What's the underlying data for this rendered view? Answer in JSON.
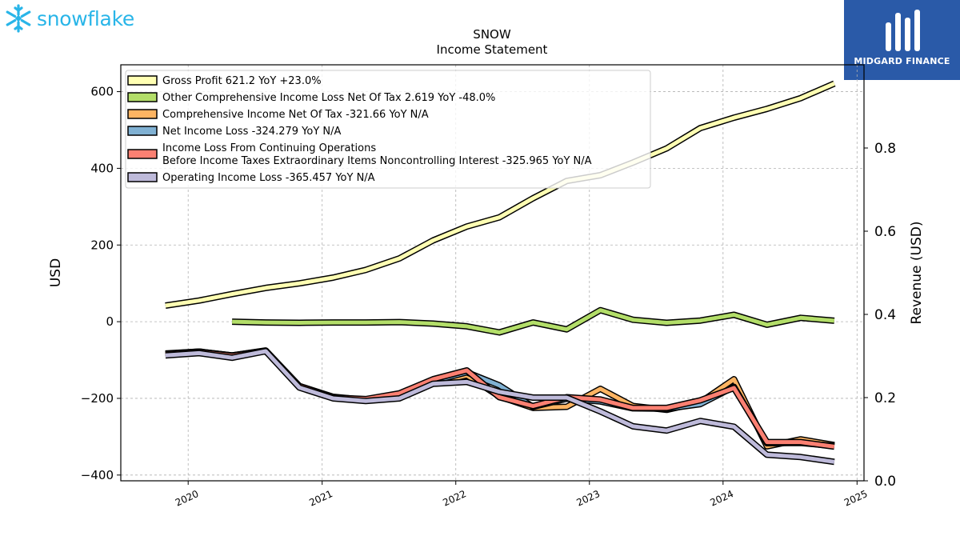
{
  "brand": {
    "left_logo_text": "snowflake",
    "left_logo_icon": "snowflake-icon",
    "right_logo_text": "MIDGARD FINANCE",
    "right_logo_icon": "midgard-monogram-icon",
    "left_color": "#29b5e8",
    "right_bg": "#2a5aa8"
  },
  "chart_data": {
    "type": "line",
    "title": "SNOW",
    "subtitle": "Income Statement",
    "ylabel": "USD",
    "y2label": "Revenue (USD)",
    "ylim": [
      -415,
      670
    ],
    "y2lim": [
      0.0,
      1.0
    ],
    "xlim": [
      "2019-07-01",
      "2025-01-20"
    ],
    "yticks": [
      -400,
      -200,
      0,
      200,
      400,
      600
    ],
    "ytick_labels": [
      "−400",
      "−200",
      "0",
      "200",
      "400",
      "600"
    ],
    "y2ticks": [
      0.0,
      0.2,
      0.4,
      0.6,
      0.8
    ],
    "y2tick_labels": [
      "0.0",
      "0.2",
      "0.4",
      "0.6",
      "0.8"
    ],
    "xticks": [
      "2020-01-01",
      "2021-01-01",
      "2022-01-01",
      "2023-01-01",
      "2024-01-01",
      "2025-01-01"
    ],
    "xtick_labels": [
      "2020",
      "2021",
      "2022",
      "2023",
      "2024",
      "2025"
    ],
    "grid": true,
    "legend_position": "top-left",
    "series": [
      {
        "name": "Gross Profit",
        "legend": "Gross Profit  621.2 YoY +23.0%",
        "color": "#ffffb3",
        "points": [
          [
            "2019-10-31",
            42
          ],
          [
            "2020-01-31",
            55
          ],
          [
            "2020-04-30",
            72
          ],
          [
            "2020-07-31",
            88
          ],
          [
            "2020-10-31",
            100
          ],
          [
            "2021-01-31",
            115
          ],
          [
            "2021-04-30",
            135
          ],
          [
            "2021-07-31",
            165
          ],
          [
            "2021-10-31",
            212
          ],
          [
            "2022-01-31",
            248
          ],
          [
            "2022-04-30",
            272
          ],
          [
            "2022-07-31",
            322
          ],
          [
            "2022-10-31",
            367
          ],
          [
            "2023-01-31",
            382
          ],
          [
            "2023-04-30",
            415
          ],
          [
            "2023-07-31",
            452
          ],
          [
            "2023-10-31",
            505
          ],
          [
            "2024-01-31",
            532
          ],
          [
            "2024-04-30",
            555
          ],
          [
            "2024-07-31",
            583
          ],
          [
            "2024-10-31",
            621.2
          ]
        ]
      },
      {
        "name": "Other Comprehensive Income Loss Net Of Tax",
        "legend": "Other Comprehensive Income Loss Net Of Tax  2.619 YoY -48.0%",
        "color": "#b3de69",
        "points": [
          [
            "2020-04-30",
            0
          ],
          [
            "2020-07-31",
            -2
          ],
          [
            "2020-10-31",
            -3
          ],
          [
            "2021-01-31",
            -2
          ],
          [
            "2021-04-30",
            -2
          ],
          [
            "2021-07-31",
            -1
          ],
          [
            "2021-10-31",
            -5
          ],
          [
            "2022-01-31",
            -12
          ],
          [
            "2022-04-30",
            -28
          ],
          [
            "2022-07-31",
            -2
          ],
          [
            "2022-10-31",
            -20
          ],
          [
            "2023-01-31",
            30
          ],
          [
            "2023-04-30",
            5
          ],
          [
            "2023-07-31",
            -3
          ],
          [
            "2023-10-31",
            3
          ],
          [
            "2024-01-31",
            18
          ],
          [
            "2024-04-30",
            -8
          ],
          [
            "2024-07-31",
            10
          ],
          [
            "2024-10-31",
            2.619
          ]
        ]
      },
      {
        "name": "Comprehensive Income Net Of Tax",
        "legend": "Comprehensive Income Net Of Tax  -321.66 YoY N/A",
        "color": "#fdb462",
        "points": [
          [
            "2019-10-31",
            -83
          ],
          [
            "2020-01-31",
            -78
          ],
          [
            "2020-04-30",
            -88
          ],
          [
            "2020-07-31",
            -75
          ],
          [
            "2020-10-31",
            -168
          ],
          [
            "2021-01-31",
            -196
          ],
          [
            "2021-04-30",
            -204
          ],
          [
            "2021-07-31",
            -189
          ],
          [
            "2021-10-31",
            -160
          ],
          [
            "2022-01-31",
            -140
          ],
          [
            "2022-04-30",
            -195
          ],
          [
            "2022-07-31",
            -225
          ],
          [
            "2022-10-31",
            -222
          ],
          [
            "2023-01-31",
            -175
          ],
          [
            "2023-04-30",
            -220
          ],
          [
            "2023-07-31",
            -230
          ],
          [
            "2023-10-31",
            -210
          ],
          [
            "2024-01-31",
            -150
          ],
          [
            "2024-04-30",
            -325
          ],
          [
            "2024-07-31",
            -307
          ],
          [
            "2024-10-31",
            -321.66
          ]
        ]
      },
      {
        "name": "Net Income Loss",
        "legend": "Net Income Loss  -324.279 YoY N/A",
        "color": "#80b1d3",
        "points": [
          [
            "2019-10-31",
            -84
          ],
          [
            "2020-01-31",
            -78
          ],
          [
            "2020-04-30",
            -88
          ],
          [
            "2020-07-31",
            -76
          ],
          [
            "2020-10-31",
            -169
          ],
          [
            "2021-01-31",
            -199
          ],
          [
            "2021-04-30",
            -203
          ],
          [
            "2021-07-31",
            -190
          ],
          [
            "2021-10-31",
            -155
          ],
          [
            "2022-01-31",
            -132
          ],
          [
            "2022-04-30",
            -166
          ],
          [
            "2022-07-31",
            -222
          ],
          [
            "2022-10-31",
            -201
          ],
          [
            "2023-01-31",
            -208
          ],
          [
            "2023-04-30",
            -226
          ],
          [
            "2023-07-31",
            -227
          ],
          [
            "2023-10-31",
            -215
          ],
          [
            "2024-01-31",
            -170
          ],
          [
            "2024-04-30",
            -317
          ],
          [
            "2024-07-31",
            -316
          ],
          [
            "2024-10-31",
            -324.279
          ]
        ]
      },
      {
        "name": "Income Loss From Continuing Operations Before Income Taxes Extraordinary Items Noncontrolling Interest",
        "legend": "Income Loss From Continuing Operations",
        "legend_line2": "Before Income Taxes Extraordinary Items Noncontrolling Interest  -325.965 YoY N/A",
        "color": "#fb8072",
        "points": [
          [
            "2019-10-31",
            -85
          ],
          [
            "2020-01-31",
            -79
          ],
          [
            "2020-04-30",
            -89
          ],
          [
            "2020-07-31",
            -77
          ],
          [
            "2020-10-31",
            -168
          ],
          [
            "2021-01-31",
            -198
          ],
          [
            "2021-04-30",
            -202
          ],
          [
            "2021-07-31",
            -187
          ],
          [
            "2021-10-31",
            -150
          ],
          [
            "2022-01-31",
            -127
          ],
          [
            "2022-04-30",
            -197
          ],
          [
            "2022-07-31",
            -220
          ],
          [
            "2022-10-31",
            -197
          ],
          [
            "2023-01-31",
            -203
          ],
          [
            "2023-04-30",
            -225
          ],
          [
            "2023-07-31",
            -225
          ],
          [
            "2023-10-31",
            -205
          ],
          [
            "2024-01-31",
            -173
          ],
          [
            "2024-04-30",
            -314
          ],
          [
            "2024-07-31",
            -314
          ],
          [
            "2024-10-31",
            -325.965
          ]
        ]
      },
      {
        "name": "Operating Income Loss",
        "legend": "Operating Income Loss  -365.457 YoY N/A",
        "color": "#bebada",
        "points": [
          [
            "2019-10-31",
            -88
          ],
          [
            "2020-01-31",
            -82
          ],
          [
            "2020-04-30",
            -94
          ],
          [
            "2020-07-31",
            -77
          ],
          [
            "2020-10-31",
            -172
          ],
          [
            "2021-01-31",
            -200
          ],
          [
            "2021-04-30",
            -207
          ],
          [
            "2021-07-31",
            -200
          ],
          [
            "2021-10-31",
            -162
          ],
          [
            "2022-01-31",
            -157
          ],
          [
            "2022-04-30",
            -183
          ],
          [
            "2022-07-31",
            -198
          ],
          [
            "2022-10-31",
            -198
          ],
          [
            "2023-01-31",
            -234
          ],
          [
            "2023-04-30",
            -273
          ],
          [
            "2023-07-31",
            -284
          ],
          [
            "2023-10-31",
            -259
          ],
          [
            "2024-01-31",
            -274
          ],
          [
            "2024-04-30",
            -347
          ],
          [
            "2024-07-31",
            -353
          ],
          [
            "2024-10-31",
            -365.457
          ]
        ]
      }
    ]
  }
}
